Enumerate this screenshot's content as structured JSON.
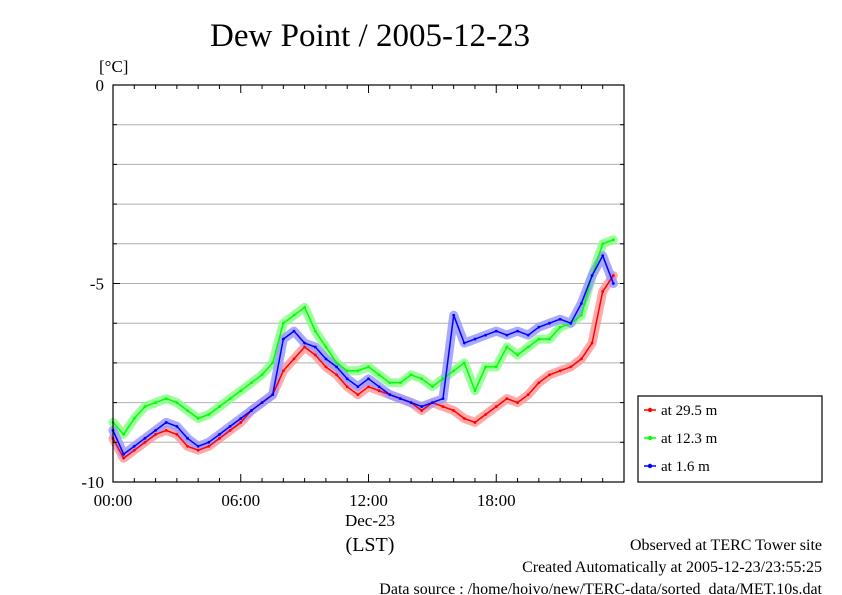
{
  "chart_data": {
    "type": "line",
    "title": "Dew Point / 2005-12-23",
    "ylabel": "[°C]",
    "xlabel": "(LST)",
    "x_date_label": "Dec-23",
    "ylim": [
      -10,
      0
    ],
    "xlim_hours": [
      0,
      24
    ],
    "yticks": [
      {
        "v": 0,
        "label": "0"
      },
      {
        "v": -5,
        "label": "-5"
      },
      {
        "v": -10,
        "label": "-10"
      }
    ],
    "xticks": [
      {
        "h": 0,
        "label": "00:00"
      },
      {
        "h": 6,
        "label": "06:00"
      },
      {
        "h": 12,
        "label": "12:00"
      },
      {
        "h": 18,
        "label": "18:00"
      }
    ],
    "grid": true,
    "legend_position": "right",
    "hours": [
      0,
      0.5,
      1,
      1.5,
      2,
      2.5,
      3,
      3.5,
      4,
      4.5,
      5,
      5.5,
      6,
      6.5,
      7,
      7.5,
      8,
      8.5,
      9,
      9.5,
      10,
      10.5,
      11,
      11.5,
      12,
      12.5,
      13,
      13.5,
      14,
      14.5,
      15,
      15.5,
      16,
      16.5,
      17,
      17.5,
      18,
      18.5,
      19,
      19.5,
      20,
      20.5,
      21,
      21.5,
      22,
      22.5,
      23,
      23.5
    ],
    "series": [
      {
        "name": "at 29.5 m",
        "color": "#ff0000",
        "values": [
          -8.9,
          -9.4,
          -9.2,
          -9.0,
          -8.8,
          -8.7,
          -8.8,
          -9.1,
          -9.2,
          -9.1,
          -8.9,
          -8.7,
          -8.5,
          -8.2,
          -8.0,
          -7.8,
          -7.2,
          -6.9,
          -6.6,
          -6.8,
          -7.1,
          -7.3,
          -7.6,
          -7.8,
          -7.6,
          -7.7,
          -7.8,
          -7.9,
          -8.0,
          -8.2,
          -8.0,
          -8.1,
          -8.2,
          -8.4,
          -8.5,
          -8.3,
          -8.1,
          -7.9,
          -8.0,
          -7.8,
          -7.5,
          -7.3,
          -7.2,
          -7.1,
          -6.9,
          -6.5,
          -5.2,
          -4.8
        ]
      },
      {
        "name": "at 12.3 m",
        "color": "#00ff00",
        "values": [
          -8.5,
          -8.8,
          -8.4,
          -8.1,
          -8.0,
          -7.9,
          -8.0,
          -8.2,
          -8.4,
          -8.3,
          -8.1,
          -7.9,
          -7.7,
          -7.5,
          -7.3,
          -7.0,
          -6.0,
          -5.8,
          -5.6,
          -6.2,
          -6.6,
          -7.0,
          -7.2,
          -7.2,
          -7.1,
          -7.3,
          -7.5,
          -7.5,
          -7.3,
          -7.4,
          -7.6,
          -7.4,
          -7.2,
          -7.0,
          -7.7,
          -7.1,
          -7.1,
          -6.6,
          -6.8,
          -6.6,
          -6.4,
          -6.4,
          -6.1,
          -6.0,
          -5.8,
          -4.8,
          -4.0,
          -3.9
        ]
      },
      {
        "name": "at 1.6 m",
        "color": "#0000ff",
        "values": [
          -8.7,
          -9.3,
          -9.1,
          -8.9,
          -8.7,
          -8.5,
          -8.6,
          -8.9,
          -9.1,
          -9.0,
          -8.8,
          -8.6,
          -8.4,
          -8.2,
          -8.0,
          -7.8,
          -6.4,
          -6.2,
          -6.5,
          -6.6,
          -6.9,
          -7.1,
          -7.4,
          -7.6,
          -7.4,
          -7.6,
          -7.8,
          -7.9,
          -8.0,
          -8.1,
          -8.0,
          -7.9,
          -5.8,
          -6.5,
          -6.4,
          -6.3,
          -6.2,
          -6.3,
          -6.2,
          -6.3,
          -6.1,
          -6.0,
          -5.9,
          -6.0,
          -5.5,
          -4.8,
          -4.3,
          -5.0
        ]
      }
    ]
  },
  "notes": {
    "line1": "Observed at TERC Tower site",
    "line2": "Created Automatically at 2005-12-23/23:55:25",
    "line3": "Data source : /home/hoivo/new/TERC-data/sorted_data/MET.10s.dat"
  }
}
